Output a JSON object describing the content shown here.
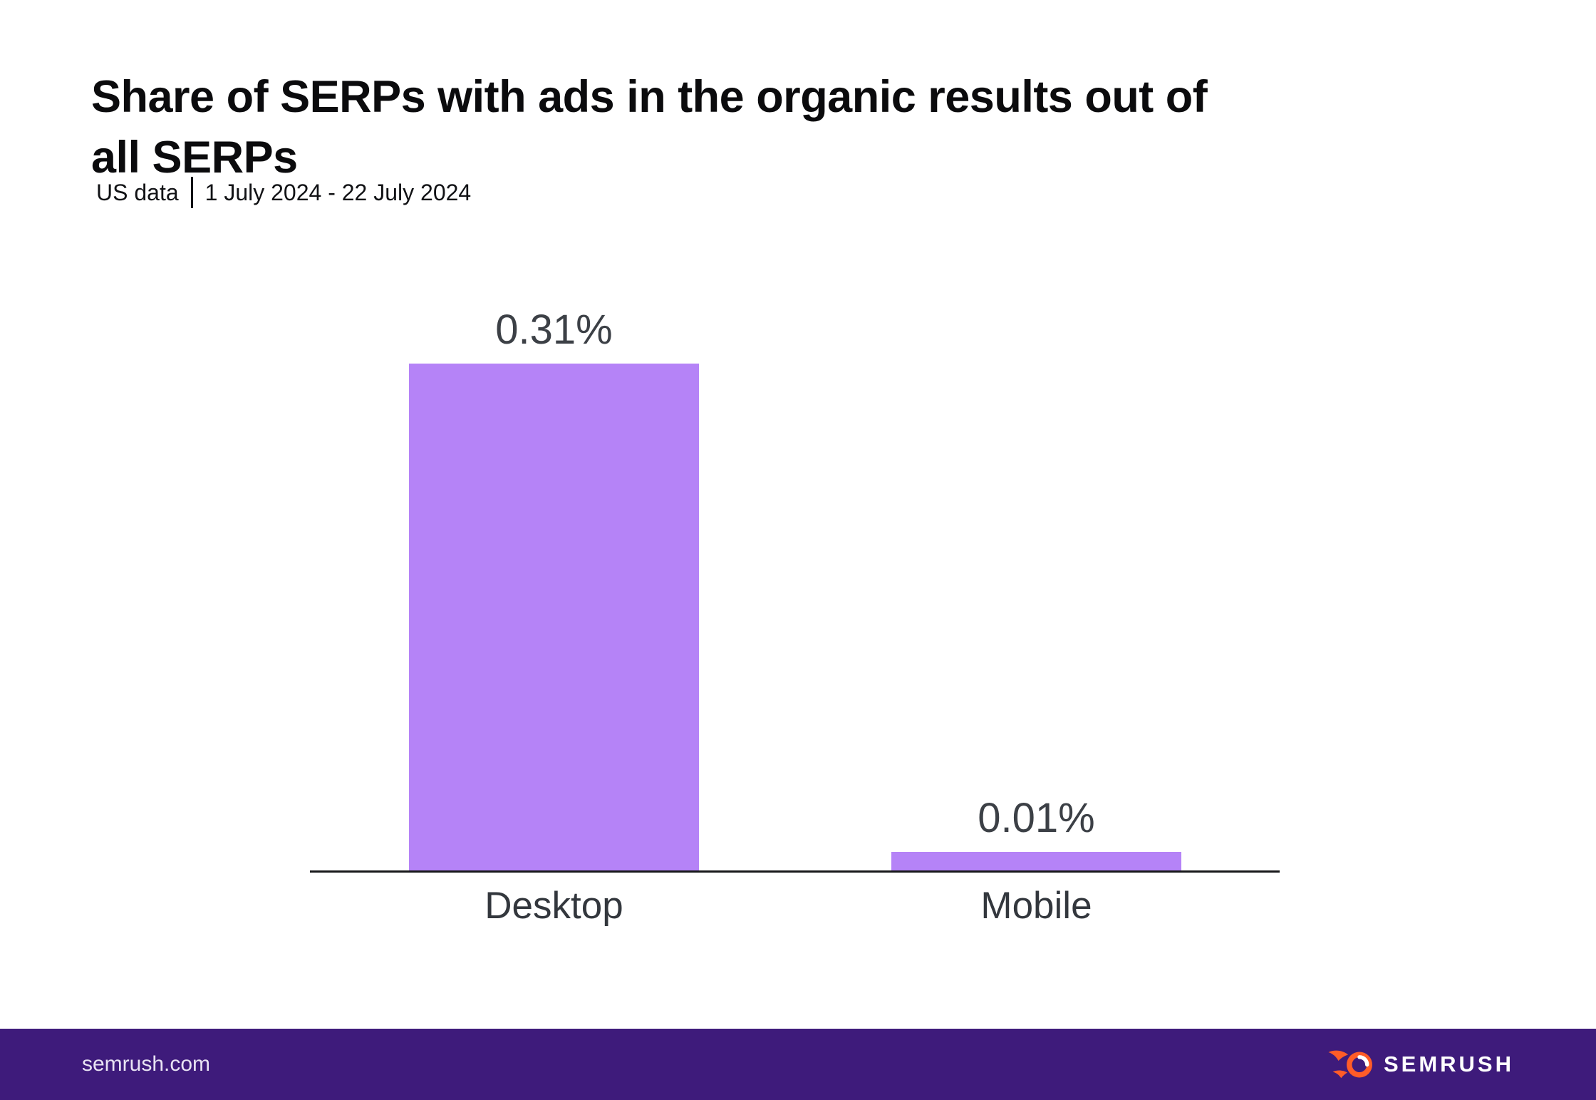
{
  "header": {
    "title": "Share of SERPs with ads in the organic results out of all SERPs",
    "title_lines": [
      "Share of SERPs with ads in the organic results out of",
      "all SERPs"
    ],
    "region_label": "US data",
    "date_range": "1 July 2024 - 22 July 2024"
  },
  "chart_data": {
    "type": "bar",
    "title": "Share of SERPs with ads in the organic results out of all SERPs",
    "subtitle": "US data | 1 July 2024 - 22 July 2024",
    "categories": [
      "Desktop",
      "Mobile"
    ],
    "values": [
      0.31,
      0.01
    ],
    "value_labels": [
      "0.31%",
      "0.01%"
    ],
    "unit": "%",
    "xlabel": "",
    "ylabel": "",
    "ylim": [
      0,
      0.31
    ],
    "grid": false,
    "legend": false,
    "bar_color": "#b583f7",
    "axis_line_color": "#17181a",
    "value_label_position": "above-bar"
  },
  "footer": {
    "site": "semrush.com",
    "brand": "SEMRUSH",
    "background_color": "#3e1b7b",
    "logo_color": "#ff5c28",
    "logo_icon": "semrush-fireball-icon"
  }
}
